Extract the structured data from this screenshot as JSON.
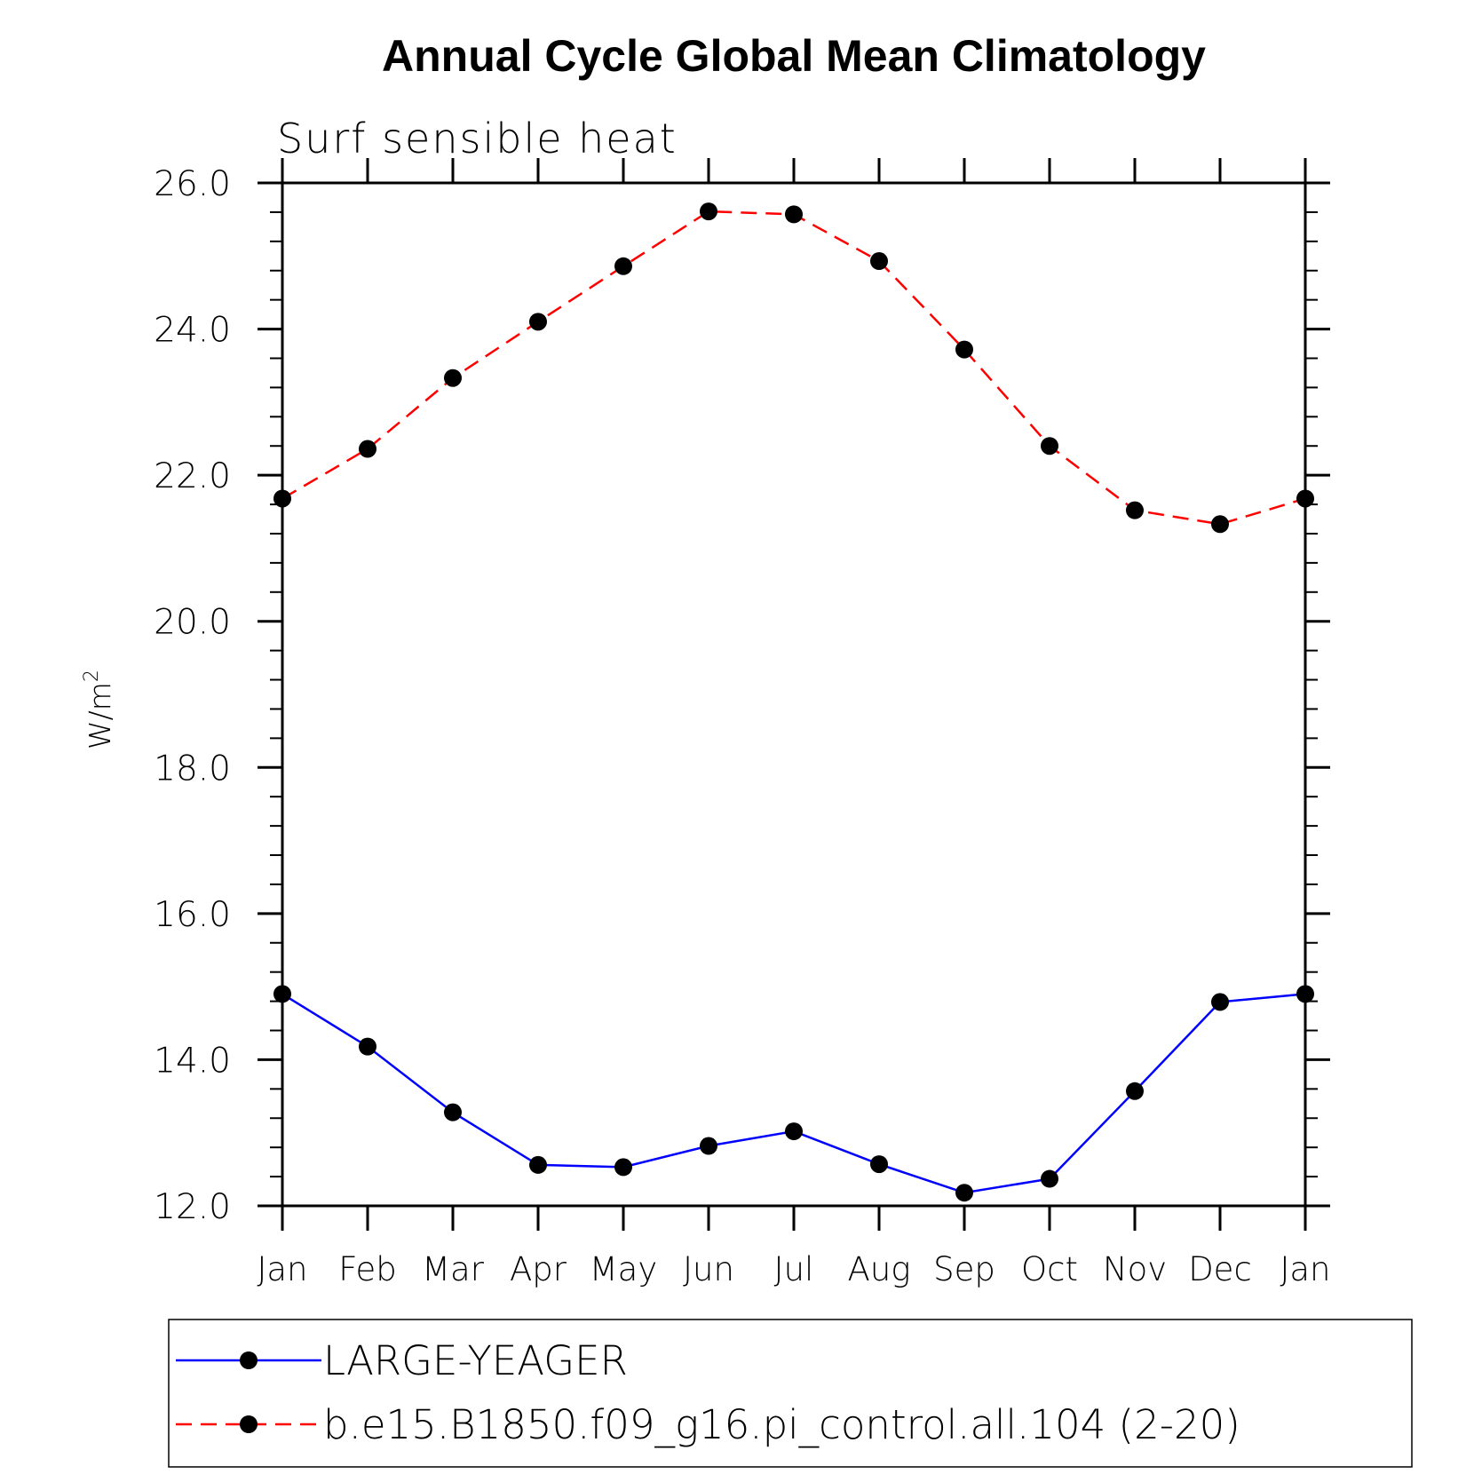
{
  "chart_data": {
    "type": "line",
    "title": "Annual Cycle Global Mean Climatology",
    "subtitle": "Surf sensible heat",
    "ylabel": "W/m",
    "ylabel_superscript": "2",
    "xlabel": "",
    "ylim": [
      12.0,
      26.0
    ],
    "yticks": [
      "12.0",
      "14.0",
      "16.0",
      "18.0",
      "20.0",
      "22.0",
      "24.0",
      "26.0"
    ],
    "categories": [
      "Jan",
      "Feb",
      "Mar",
      "Apr",
      "May",
      "Jun",
      "Jul",
      "Aug",
      "Sep",
      "Oct",
      "Nov",
      "Dec",
      "Jan"
    ],
    "series": [
      {
        "name": "LARGE-YEAGER",
        "color": "#0000ff",
        "dash": "solid",
        "values": [
          14.9,
          14.18,
          13.28,
          12.56,
          12.53,
          12.82,
          13.02,
          12.57,
          12.18,
          12.37,
          13.57,
          14.79,
          14.9
        ]
      },
      {
        "name": "b.e15.B1850.f09_g16.pi_control.all.104 (2-20)",
        "color": "#ff0000",
        "dash": "dashed",
        "values": [
          21.68,
          22.36,
          23.33,
          24.1,
          24.86,
          25.61,
          25.57,
          24.93,
          23.72,
          22.4,
          21.52,
          21.33,
          21.68
        ]
      }
    ],
    "legend_position": "bottom"
  }
}
